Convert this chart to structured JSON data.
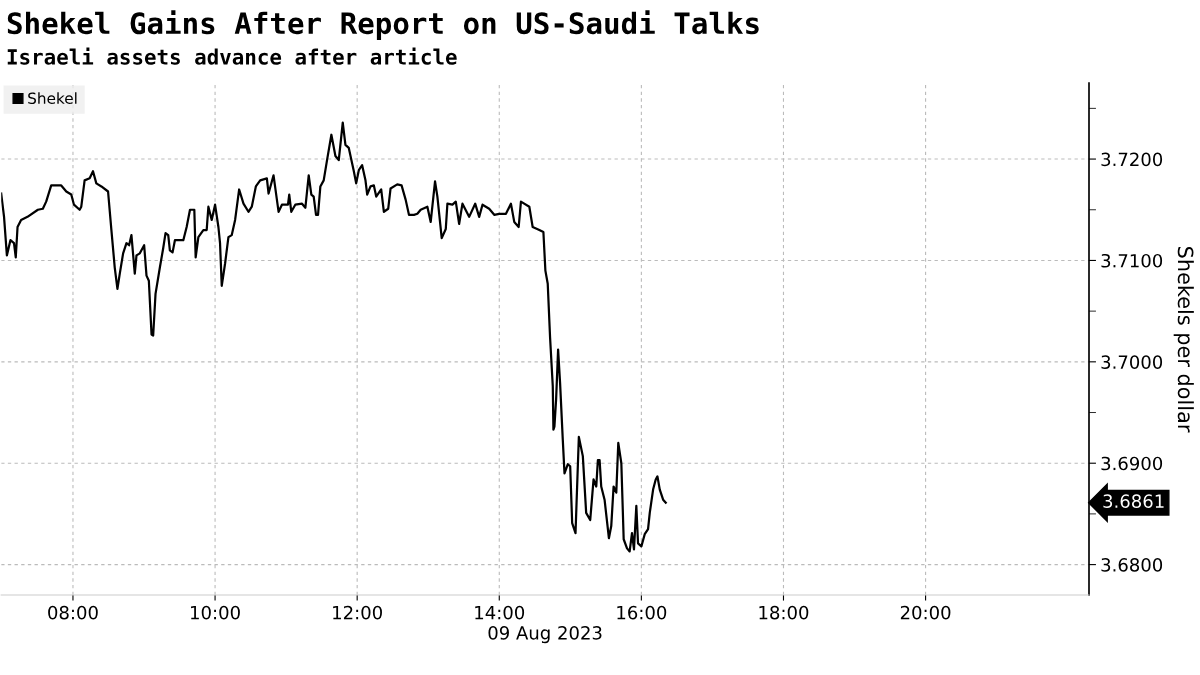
{
  "chart_data": {
    "type": "line",
    "title": "Shekel Gains After Report on US-Saudi Talks",
    "subtitle": "Israeli assets advance after article",
    "xlabel": "09 Aug 2023",
    "ylabel": "Shekels per dollar",
    "series": [
      {
        "name": "Shekel",
        "color": "#000000",
        "x": [
          6.99,
          7.03,
          7.07,
          7.12,
          7.17,
          7.195,
          7.22,
          7.27,
          7.36,
          7.506,
          7.576,
          7.623,
          7.694,
          7.835,
          7.906,
          7.976,
          8.014,
          8.094,
          8.117,
          8.164,
          8.235,
          8.282,
          8.329,
          8.4,
          8.494,
          8.541,
          8.588,
          8.626,
          8.659,
          8.706,
          8.753,
          8.79,
          8.823,
          8.87,
          8.894,
          8.941,
          9.002,
          9.035,
          9.068,
          9.106,
          9.129,
          9.162,
          9.223,
          9.27,
          9.303,
          9.341,
          9.364,
          9.402,
          9.435,
          9.553,
          9.6,
          9.647,
          9.708,
          9.727,
          9.765,
          9.835,
          9.882,
          9.906,
          9.953,
          10.0,
          10.047,
          10.07,
          10.094,
          10.141,
          10.188,
          10.235,
          10.282,
          10.339,
          10.4,
          10.47,
          10.517,
          10.574,
          10.635,
          10.729,
          10.753,
          10.823,
          10.894,
          10.941,
          11.026,
          11.044,
          11.073,
          11.129,
          11.224,
          11.271,
          11.318,
          11.355,
          11.388,
          11.421,
          11.449,
          11.482,
          11.529,
          11.576,
          11.637,
          11.694,
          11.741,
          11.797,
          11.835,
          11.882,
          11.953,
          11.986,
          12.023,
          12.07,
          12.117,
          12.141,
          12.188,
          12.235,
          12.268,
          12.338,
          12.376,
          12.437,
          12.47,
          12.564,
          12.625,
          12.682,
          12.729,
          12.8,
          12.847,
          12.894,
          12.988,
          13.035,
          13.096,
          13.129,
          13.19,
          13.247,
          13.27,
          13.341,
          13.388,
          13.435,
          13.482,
          13.576,
          13.661,
          13.717,
          13.764,
          13.858,
          13.929,
          14.0,
          14.094,
          14.164,
          14.211,
          14.273,
          14.305,
          14.423,
          14.47,
          14.564,
          14.621,
          14.649,
          14.682,
          14.715,
          14.753,
          14.762,
          14.776,
          14.8,
          14.828,
          14.856,
          14.894,
          14.918,
          14.965,
          14.998,
          15.026,
          15.073,
          15.12,
          15.176,
          15.223,
          15.28,
          15.327,
          15.365,
          15.388,
          15.412,
          15.435,
          15.482,
          15.543,
          15.576,
          15.609,
          15.647,
          15.675,
          15.718,
          15.751,
          15.798,
          15.835,
          15.868,
          15.896,
          15.929,
          15.953,
          16.0,
          16.047,
          16.094,
          16.118,
          16.165,
          16.202,
          16.226,
          16.259,
          16.306,
          16.343
        ],
        "values": [
          3.7166,
          3.7143,
          3.7105,
          3.712,
          3.7117,
          3.7103,
          3.7133,
          3.714,
          3.7143,
          3.715,
          3.7151,
          3.7158,
          3.7174,
          3.7174,
          3.7168,
          3.7165,
          3.7155,
          3.715,
          3.7153,
          3.7179,
          3.7181,
          3.7188,
          3.7176,
          3.7173,
          3.7168,
          3.713,
          3.7093,
          3.7072,
          3.7087,
          3.7107,
          3.7117,
          3.7115,
          3.7125,
          3.7087,
          3.7105,
          3.7107,
          3.7115,
          3.7085,
          3.708,
          3.7027,
          3.7026,
          3.7067,
          3.7093,
          3.7112,
          3.7127,
          3.7125,
          3.711,
          3.7108,
          3.712,
          3.712,
          3.7133,
          3.715,
          3.715,
          3.7103,
          3.7123,
          3.713,
          3.713,
          3.7153,
          3.714,
          3.7155,
          3.7133,
          3.7117,
          3.7075,
          3.7097,
          3.7123,
          3.7125,
          3.714,
          3.717,
          3.7156,
          3.7148,
          3.7153,
          3.7173,
          3.7179,
          3.7181,
          3.7166,
          3.7184,
          3.7148,
          3.7155,
          3.7155,
          3.7165,
          3.7148,
          3.7155,
          3.7156,
          3.7152,
          3.7184,
          3.7165,
          3.7163,
          3.7145,
          3.7145,
          3.7173,
          3.7179,
          3.7199,
          3.7224,
          3.7203,
          3.7199,
          3.7236,
          3.7214,
          3.7211,
          3.7188,
          3.7176,
          3.7189,
          3.7194,
          3.7179,
          3.7165,
          3.7173,
          3.7174,
          3.7163,
          3.717,
          3.7148,
          3.7151,
          3.7171,
          3.7175,
          3.7174,
          3.716,
          3.7145,
          3.7145,
          3.7146,
          3.715,
          3.7153,
          3.7138,
          3.7178,
          3.7163,
          3.7122,
          3.7131,
          3.7156,
          3.7155,
          3.7158,
          3.7136,
          3.7156,
          3.7143,
          3.7156,
          3.7143,
          3.7155,
          3.7151,
          3.7145,
          3.7146,
          3.7146,
          3.7156,
          3.7138,
          3.7133,
          3.7158,
          3.7153,
          3.7133,
          3.713,
          3.7128,
          3.709,
          3.7077,
          3.7024,
          3.6976,
          3.6933,
          3.6936,
          3.6963,
          3.7012,
          3.6979,
          3.6923,
          3.689,
          3.6899,
          3.6897,
          3.6841,
          3.6831,
          3.6926,
          3.6907,
          3.6851,
          3.6844,
          3.6884,
          3.6877,
          3.6903,
          3.6903,
          3.6877,
          3.6864,
          3.6826,
          3.6838,
          3.6877,
          3.6871,
          3.692,
          3.69,
          3.6825,
          3.6816,
          3.6813,
          3.6831,
          3.6815,
          3.6858,
          3.6821,
          3.6818,
          3.683,
          3.6835,
          3.6851,
          3.6874,
          3.6884,
          3.6887,
          3.6874,
          3.6864,
          3.6861
        ]
      }
    ],
    "xlim": [
      6.99,
      22.3
    ],
    "xticks": [
      {
        "value": 8,
        "label": "08:00"
      },
      {
        "value": 10,
        "label": "10:00"
      },
      {
        "value": 12,
        "label": "12:00"
      },
      {
        "value": 14,
        "label": "14:00"
      },
      {
        "value": 16,
        "label": "16:00"
      },
      {
        "value": 18,
        "label": "18:00"
      },
      {
        "value": 20,
        "label": "20:00"
      }
    ],
    "ylim": [
      3.677,
      3.7275
    ],
    "yticks": [
      {
        "value": 3.68,
        "label": "3.6800"
      },
      {
        "value": 3.69,
        "label": "3.6900"
      },
      {
        "value": 3.7,
        "label": "3.7000"
      },
      {
        "value": 3.71,
        "label": "3.7100"
      },
      {
        "value": 3.72,
        "label": "3.7200"
      }
    ],
    "annotations": [
      "3.6861"
    ],
    "grid": true,
    "legend": "top left",
    "marker": "none",
    "line_style": "solid"
  }
}
